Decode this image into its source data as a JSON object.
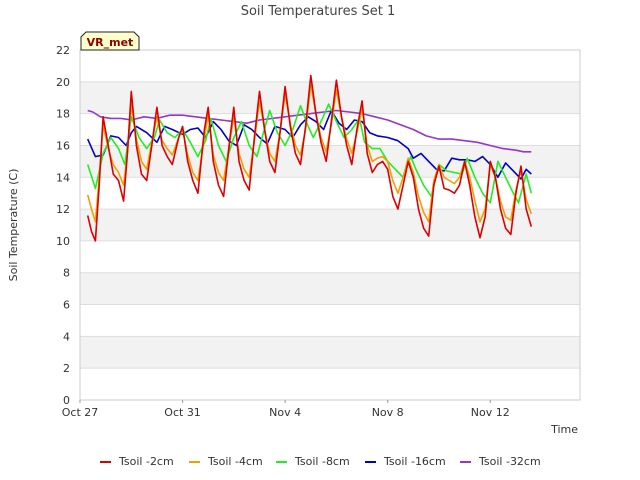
{
  "chart_data": {
    "type": "line",
    "title": "Soil Temperatures Set 1",
    "xlabel": "Time",
    "ylabel": "Soil Temperature (C)",
    "station_badge": "VR_met",
    "ylim": [
      0,
      22
    ],
    "yticks": [
      0,
      2,
      4,
      6,
      8,
      10,
      12,
      14,
      16,
      18,
      20,
      22
    ],
    "xlim_days": [
      0,
      19.5
    ],
    "xticks": [
      {
        "day": 0,
        "label": "Oct 27"
      },
      {
        "day": 4,
        "label": "Oct 31"
      },
      {
        "day": 8,
        "label": "Nov 4"
      },
      {
        "day": 12,
        "label": "Nov 8"
      },
      {
        "day": 16,
        "label": "Nov 12"
      }
    ],
    "grid": true,
    "legend_position": "bottom",
    "series": [
      {
        "name": "Tsoil -2cm",
        "color": "#dd0000",
        "x": [
          0.3,
          0.45,
          0.6,
          0.75,
          0.9,
          1.1,
          1.3,
          1.5,
          1.7,
          1.85,
          2.0,
          2.2,
          2.4,
          2.6,
          2.8,
          3.0,
          3.2,
          3.4,
          3.6,
          3.85,
          4.0,
          4.2,
          4.4,
          4.6,
          4.85,
          5.0,
          5.2,
          5.4,
          5.6,
          5.85,
          6.0,
          6.2,
          6.4,
          6.6,
          6.8,
          7.0,
          7.2,
          7.4,
          7.6,
          7.8,
          8.0,
          8.2,
          8.4,
          8.6,
          8.8,
          9.0,
          9.2,
          9.4,
          9.6,
          9.8,
          10.0,
          10.2,
          10.4,
          10.6,
          10.8,
          11.0,
          11.2,
          11.4,
          11.6,
          11.8,
          12.0,
          12.2,
          12.4,
          12.6,
          12.8,
          13.0,
          13.2,
          13.4,
          13.6,
          13.8,
          14.0,
          14.2,
          14.4,
          14.6,
          14.8,
          15.0,
          15.2,
          15.4,
          15.6,
          15.8,
          16.0,
          16.2,
          16.4,
          16.6,
          16.8,
          17.0,
          17.2,
          17.4,
          17.6
        ],
        "values": [
          11.6,
          10.6,
          10.0,
          13.5,
          17.8,
          16.0,
          14.2,
          13.8,
          12.5,
          15.5,
          19.4,
          16.0,
          14.2,
          13.8,
          16.0,
          18.4,
          16.0,
          15.3,
          14.8,
          16.5,
          17.2,
          15.0,
          13.8,
          13.0,
          17.0,
          18.4,
          15.0,
          13.5,
          12.8,
          16.5,
          18.4,
          15.0,
          13.8,
          13.2,
          16.5,
          19.4,
          17.0,
          15.0,
          14.3,
          16.8,
          19.7,
          17.2,
          15.5,
          14.8,
          17.2,
          20.4,
          18.0,
          16.2,
          15.0,
          17.5,
          20.1,
          17.8,
          16.0,
          14.8,
          17.0,
          18.8,
          15.5,
          14.3,
          14.8,
          15.0,
          14.5,
          12.8,
          12.0,
          13.5,
          15.0,
          14.0,
          12.0,
          10.8,
          10.3,
          13.5,
          14.7,
          13.3,
          13.2,
          13.0,
          13.5,
          15.0,
          13.5,
          11.5,
          10.2,
          11.5,
          15.0,
          14.0,
          12.0,
          10.8,
          10.4,
          13.0,
          14.7,
          12.0,
          10.9
        ]
      },
      {
        "name": "Tsoil -4cm",
        "color": "#f0a000",
        "x": [
          0.3,
          0.45,
          0.6,
          0.75,
          0.9,
          1.1,
          1.3,
          1.5,
          1.7,
          1.85,
          2.0,
          2.2,
          2.4,
          2.6,
          2.8,
          3.0,
          3.2,
          3.4,
          3.6,
          3.85,
          4.0,
          4.2,
          4.4,
          4.6,
          4.85,
          5.0,
          5.2,
          5.4,
          5.6,
          5.85,
          6.0,
          6.2,
          6.4,
          6.6,
          6.8,
          7.0,
          7.2,
          7.4,
          7.6,
          7.8,
          8.0,
          8.2,
          8.4,
          8.6,
          8.8,
          9.0,
          9.2,
          9.4,
          9.6,
          9.8,
          10.0,
          10.2,
          10.4,
          10.6,
          10.8,
          11.0,
          11.2,
          11.4,
          11.6,
          11.8,
          12.0,
          12.2,
          12.4,
          12.6,
          12.8,
          13.0,
          13.2,
          13.4,
          13.6,
          13.8,
          14.0,
          14.2,
          14.4,
          14.6,
          14.8,
          15.0,
          15.2,
          15.4,
          15.6,
          15.8,
          16.0,
          16.2,
          16.4,
          16.6,
          16.8,
          17.0,
          17.2,
          17.4,
          17.6
        ],
        "values": [
          12.9,
          12.0,
          11.2,
          14.0,
          17.3,
          15.8,
          14.8,
          14.3,
          13.5,
          15.5,
          18.6,
          16.4,
          15.0,
          14.5,
          16.2,
          17.8,
          16.3,
          15.8,
          15.4,
          16.5,
          17.0,
          15.4,
          14.3,
          13.8,
          16.5,
          17.9,
          15.4,
          14.3,
          13.8,
          16.3,
          17.8,
          15.5,
          14.5,
          14.0,
          16.3,
          18.8,
          17.0,
          15.5,
          15.0,
          16.8,
          19.2,
          17.4,
          16.0,
          15.4,
          17.0,
          19.8,
          18.0,
          16.5,
          15.6,
          17.3,
          19.5,
          17.8,
          16.4,
          15.5,
          16.8,
          18.3,
          16.0,
          15.0,
          15.2,
          15.3,
          15.0,
          13.8,
          13.0,
          14.0,
          15.2,
          14.3,
          12.8,
          11.8,
          11.2,
          13.8,
          14.8,
          14.0,
          13.8,
          13.6,
          14.0,
          15.0,
          14.0,
          12.5,
          11.2,
          12.0,
          14.8,
          14.0,
          12.5,
          11.5,
          11.3,
          13.2,
          14.4,
          12.6,
          11.7
        ]
      },
      {
        "name": "Tsoil -8cm",
        "color": "#22ee22",
        "x": [
          0.3,
          0.6,
          0.9,
          1.2,
          1.5,
          1.75,
          2.0,
          2.3,
          2.6,
          2.9,
          3.1,
          3.4,
          3.7,
          4.0,
          4.3,
          4.6,
          4.9,
          5.1,
          5.4,
          5.7,
          6.0,
          6.3,
          6.6,
          6.9,
          7.1,
          7.4,
          7.7,
          8.0,
          8.3,
          8.6,
          8.9,
          9.1,
          9.4,
          9.7,
          10.0,
          10.3,
          10.6,
          10.9,
          11.1,
          11.4,
          11.7,
          12.0,
          12.3,
          12.6,
          12.9,
          13.1,
          13.4,
          13.7,
          14.0,
          14.3,
          14.6,
          14.9,
          15.1,
          15.4,
          15.7,
          16.0,
          16.3,
          16.6,
          16.9,
          17.1,
          17.4,
          17.6
        ],
        "values": [
          14.8,
          13.3,
          15.5,
          16.5,
          15.8,
          14.8,
          17.8,
          16.5,
          15.8,
          16.5,
          17.6,
          16.8,
          16.5,
          17.0,
          16.2,
          15.3,
          16.3,
          17.7,
          16.0,
          15.0,
          16.5,
          17.5,
          16.0,
          15.3,
          16.5,
          18.2,
          16.8,
          16.0,
          17.0,
          18.5,
          17.2,
          16.5,
          17.5,
          18.6,
          17.5,
          16.5,
          17.0,
          17.7,
          16.2,
          15.8,
          15.8,
          15.0,
          14.5,
          14.0,
          15.3,
          14.5,
          13.5,
          12.8,
          14.8,
          14.4,
          14.3,
          14.2,
          15.2,
          14.0,
          13.0,
          12.4,
          15.0,
          14.0,
          13.0,
          12.4,
          14.2,
          13.0
        ]
      },
      {
        "name": "Tsoil -16cm",
        "color": "#0000cc",
        "x": [
          0.3,
          0.6,
          0.9,
          1.2,
          1.5,
          1.8,
          2.0,
          2.2,
          2.6,
          3.0,
          3.3,
          3.6,
          4.0,
          4.3,
          4.6,
          4.9,
          5.2,
          5.5,
          5.8,
          6.1,
          6.4,
          6.7,
          7.0,
          7.3,
          7.6,
          8.0,
          8.3,
          8.6,
          8.9,
          9.2,
          9.5,
          9.8,
          10.1,
          10.4,
          10.7,
          11.0,
          11.3,
          11.6,
          12.0,
          12.4,
          12.8,
          13.0,
          13.3,
          13.6,
          13.9,
          14.2,
          14.5,
          14.8,
          15.1,
          15.4,
          15.7,
          16.0,
          16.3,
          16.6,
          16.9,
          17.2,
          17.4,
          17.6
        ],
        "values": [
          16.4,
          15.3,
          15.4,
          16.6,
          16.5,
          16.0,
          16.8,
          17.2,
          16.8,
          16.2,
          17.2,
          17.0,
          16.7,
          17.0,
          17.1,
          16.5,
          17.5,
          17.0,
          16.3,
          16.0,
          17.3,
          17.0,
          16.5,
          16.1,
          17.2,
          17.0,
          16.5,
          17.3,
          17.8,
          17.5,
          17.0,
          18.2,
          17.4,
          17.0,
          17.6,
          17.5,
          16.8,
          16.6,
          16.5,
          16.3,
          15.8,
          15.2,
          15.5,
          15.0,
          14.5,
          14.4,
          15.2,
          15.1,
          15.1,
          15.0,
          15.3,
          14.8,
          14.0,
          14.9,
          14.4,
          13.9,
          14.5,
          14.2
        ]
      },
      {
        "name": "Tsoil -32cm",
        "color": "#9933cc",
        "x": [
          0.3,
          0.5,
          0.8,
          1.2,
          1.6,
          2.0,
          2.5,
          3.0,
          3.5,
          4.0,
          4.5,
          5.0,
          5.5,
          6.0,
          6.5,
          7.0,
          7.5,
          8.0,
          8.5,
          9.0,
          9.5,
          10.0,
          10.5,
          11.0,
          11.5,
          12.0,
          12.5,
          13.0,
          13.5,
          14.0,
          14.5,
          15.0,
          15.5,
          16.0,
          16.5,
          17.0,
          17.3,
          17.6
        ],
        "values": [
          18.2,
          18.1,
          17.8,
          17.7,
          17.7,
          17.6,
          17.8,
          17.7,
          17.9,
          17.9,
          17.8,
          17.7,
          17.6,
          17.5,
          17.4,
          17.6,
          17.7,
          17.8,
          17.9,
          18.0,
          18.1,
          18.2,
          18.1,
          18.0,
          17.8,
          17.6,
          17.3,
          17.0,
          16.6,
          16.4,
          16.4,
          16.3,
          16.2,
          16.0,
          15.8,
          15.7,
          15.6,
          15.6
        ]
      }
    ]
  }
}
